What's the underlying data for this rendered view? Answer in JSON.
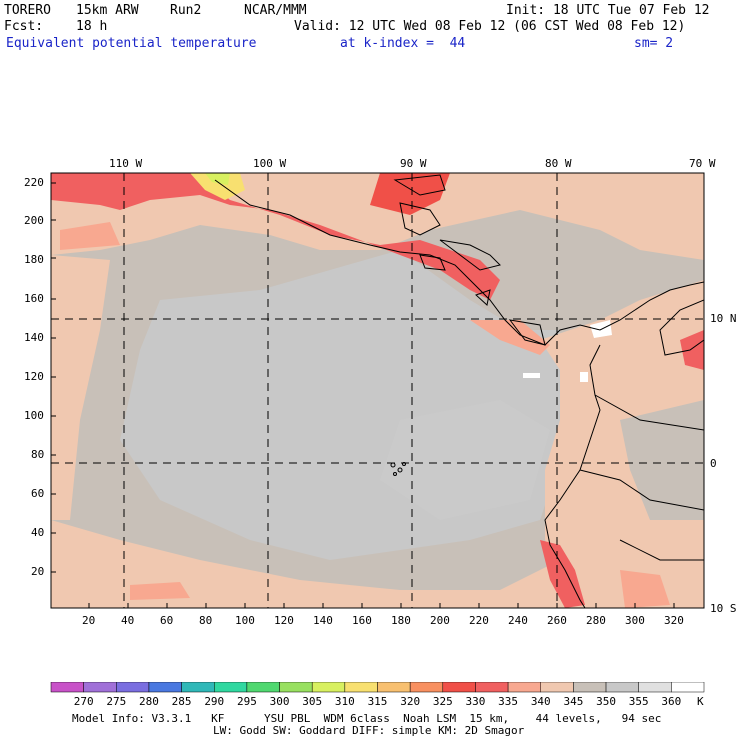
{
  "header": {
    "model": "TORERO",
    "resolution": "15km ARW",
    "run": "Run2",
    "org": "NCAR/MMM",
    "init": "Init: 18 UTC Tue 07 Feb 12",
    "fcst_label": "Fcst:",
    "fcst_value": "18 h",
    "valid": "Valid: 12 UTC Wed 08 Feb 12 (06 CST Wed 08 Feb 12)",
    "field": "Equivalent potential temperature",
    "level": "at k-index =  44",
    "smooth": "sm= 2"
  },
  "map": {
    "lon_labels": [
      "110 W",
      "100 W",
      "90 W",
      "80 W",
      "70 W"
    ],
    "lat_labels": [
      "10 N",
      "0",
      "10 S"
    ],
    "y_ticks": [
      "220",
      "200",
      "180",
      "160",
      "140",
      "120",
      "100",
      "80",
      "60",
      "40",
      "20"
    ],
    "x_ticks": [
      "20",
      "40",
      "60",
      "80",
      "100",
      "120",
      "140",
      "160",
      "180",
      "200",
      "220",
      "240",
      "260",
      "280",
      "300",
      "320"
    ]
  },
  "colorbar": {
    "labels": [
      "270",
      "275",
      "280",
      "285",
      "290",
      "295",
      "300",
      "305",
      "310",
      "315",
      "320",
      "325",
      "330",
      "335",
      "340",
      "345",
      "350",
      "355",
      "360"
    ],
    "unit": "K",
    "colors": [
      "#c852c8",
      "#a070d8",
      "#7a6ee0",
      "#4a78e0",
      "#30b8b8",
      "#30d8a0",
      "#50d870",
      "#98e060",
      "#d8f060",
      "#f8e070",
      "#f8c070",
      "#f89060",
      "#f05048",
      "#f06060",
      "#f8a890",
      "#f0c8b0",
      "#c8c0b8",
      "#c8c8c8",
      "#e0e0e0",
      "#ffffff"
    ]
  },
  "footer": {
    "line1": "Model Info: V3.3.1   KF      YSU PBL  WDM 6class  Noah LSM  15 km,    44 levels,   94 sec",
    "line2": "LW: Godd SW: Goddard DIFF: simple KM: 2D Smagor"
  }
}
